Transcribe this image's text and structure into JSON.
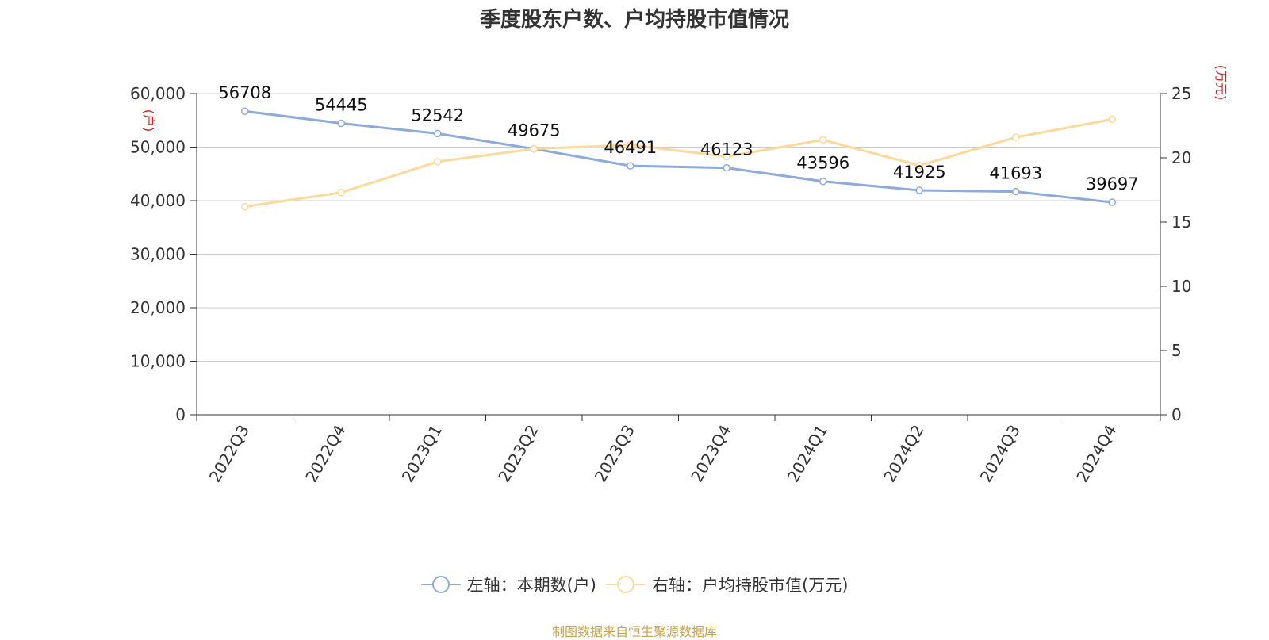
{
  "title": "季度股东户数、户均持股市值情况",
  "source": "制图数据来自恒生聚源数据库",
  "colors": {
    "left_series": "#8eaadb",
    "right_series": "#fdd999",
    "axis": "#333333",
    "grid": "#cccccc",
    "unit": "#e02020"
  },
  "chart_data": {
    "type": "line",
    "categories": [
      "2022Q3",
      "2022Q4",
      "2023Q1",
      "2023Q2",
      "2023Q3",
      "2023Q4",
      "2024Q1",
      "2024Q2",
      "2024Q3",
      "2024Q4"
    ],
    "left_axis": {
      "unit": "(户)",
      "range": [
        0,
        60000
      ],
      "ticks": [
        0,
        10000,
        20000,
        30000,
        40000,
        50000,
        60000
      ],
      "tick_labels": [
        "0",
        "10,000",
        "20,000",
        "30,000",
        "40,000",
        "50,000",
        "60,000"
      ]
    },
    "right_axis": {
      "unit": "(万元)",
      "range": [
        0,
        25
      ],
      "ticks": [
        0,
        5,
        10,
        15,
        20,
        25
      ],
      "tick_labels": [
        "0",
        "5",
        "10",
        "15",
        "20",
        "25"
      ]
    },
    "series": [
      {
        "name": "左轴：本期数(户)",
        "axis": "left",
        "values": [
          56708,
          54445,
          52542,
          49675,
          46491,
          46123,
          43596,
          41925,
          41693,
          39697
        ],
        "labels": [
          "56708",
          "54445",
          "52542",
          "49675",
          "46491",
          "46123",
          "43596",
          "41925",
          "41693",
          "39697"
        ]
      },
      {
        "name": "右轴：户均持股市值(万元)",
        "axis": "right",
        "values": [
          16.2,
          17.3,
          19.7,
          20.7,
          21.0,
          20.1,
          21.4,
          19.4,
          21.6,
          23.0
        ]
      }
    ],
    "grid": true,
    "legend_position": "bottom"
  }
}
